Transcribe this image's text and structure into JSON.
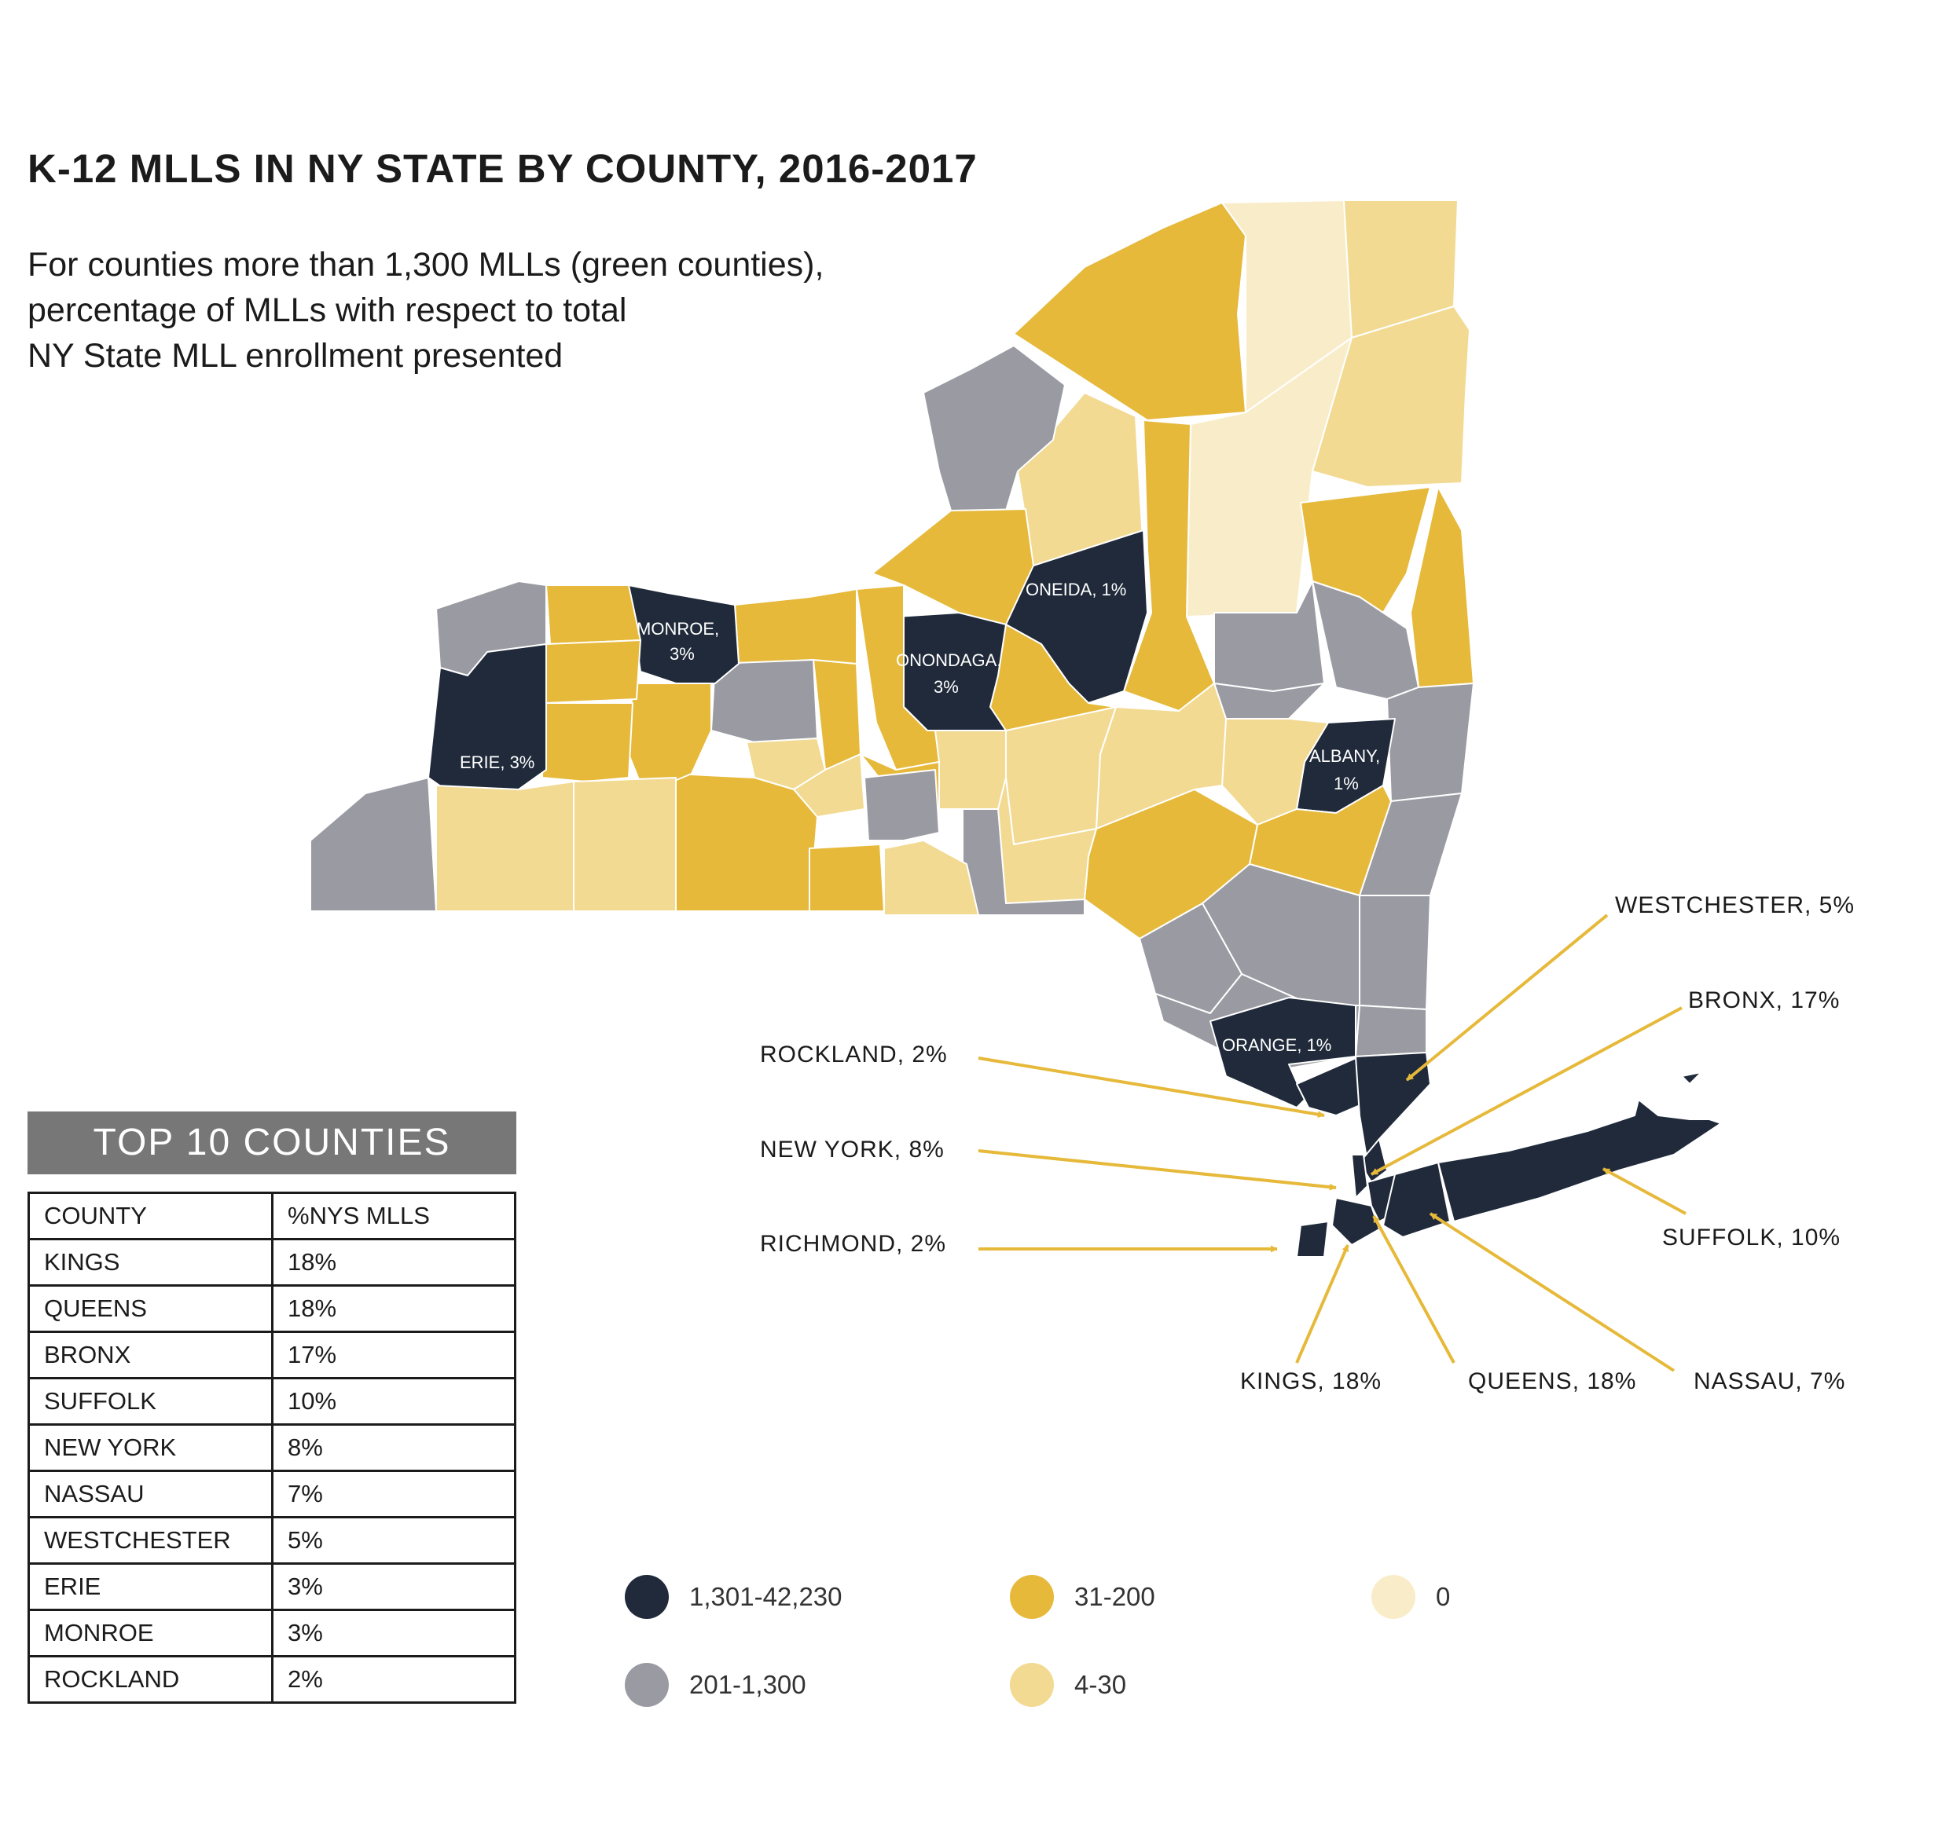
{
  "title": "K-12 MLLS IN NY STATE  BY COUNTY, 2016-2017",
  "subtitle_lines": [
    "For counties more than 1,300 MLLs (green counties),",
    "percentage of MLLs with respect to total",
    "NY State MLL enrollment presented"
  ],
  "colors": {
    "dark": "#202a3a",
    "gray": "#9a9aa2",
    "gold": "#e6b93a",
    "light_gold": "#f2da92",
    "cream": "#f9edc9",
    "arrow": "#e6b93a",
    "table_header_bg": "#777777"
  },
  "map_labels": {
    "erie": "ERIE, 3%",
    "monroe": [
      "MONROE,",
      "3%"
    ],
    "onondaga": [
      "ONONDAGA,",
      "3%"
    ],
    "oneida": "ONEIDA, 1%",
    "albany": [
      "ALBANY,",
      "1%"
    ],
    "orange": "ORANGE, 1%"
  },
  "callouts": {
    "westchester": "WESTCHESTER, 5%",
    "bronx": "BRONX, 17%",
    "rockland": "ROCKLAND, 2%",
    "new_york": "NEW YORK, 8%",
    "richmond": "RICHMOND, 2%",
    "suffolk": "SUFFOLK, 10%",
    "kings": "KINGS, 18%",
    "queens": "QUEENS, 18%",
    "nassau": "NASSAU, 7%"
  },
  "top_table": {
    "header": "TOP 10 COUNTIES",
    "columns": [
      "COUNTY",
      "%NYS MLLS"
    ],
    "rows": [
      [
        "KINGS",
        "18%"
      ],
      [
        "QUEENS",
        "18%"
      ],
      [
        "BRONX",
        "17%"
      ],
      [
        "SUFFOLK",
        "10%"
      ],
      [
        "NEW YORK",
        "8%"
      ],
      [
        "NASSAU",
        "7%"
      ],
      [
        "WESTCHESTER",
        "5%"
      ],
      [
        "ERIE",
        "3%"
      ],
      [
        "MONROE",
        "3%"
      ],
      [
        "ROCKLAND",
        "2%"
      ]
    ]
  },
  "legend": [
    {
      "label": "1,301-42,230",
      "color": "#202a3a"
    },
    {
      "label": "201-1,300",
      "color": "#9a9aa2"
    },
    {
      "label": "31-200",
      "color": "#e6b93a"
    },
    {
      "label": "4-30",
      "color": "#f2da92"
    },
    {
      "label": "0",
      "color": "#f9edc9"
    }
  ]
}
